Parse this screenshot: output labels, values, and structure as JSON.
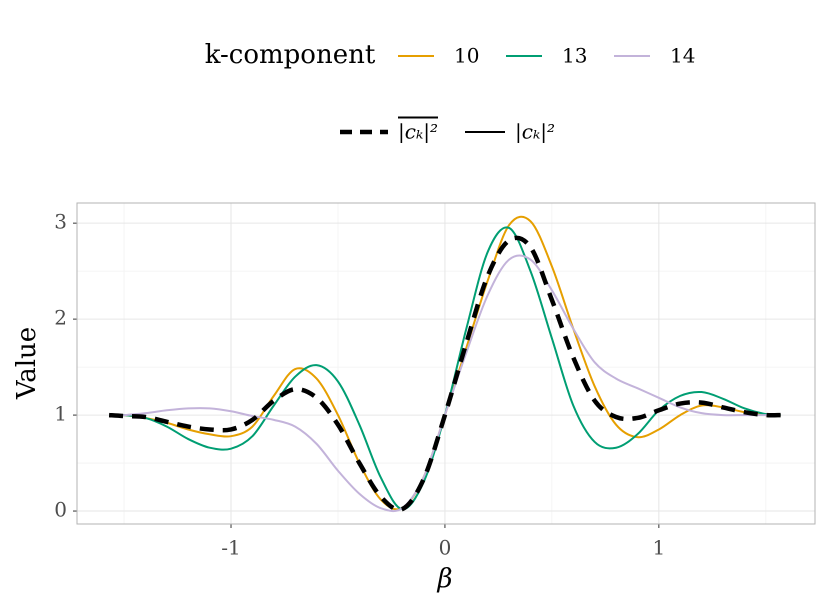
{
  "chart_data": {
    "type": "line",
    "x_label": "β",
    "y_label": "Value",
    "legend_title": "k-component",
    "solid_label": "|cₖ|²",
    "xlim": [
      -1.72,
      1.73
    ],
    "ylim": [
      -0.135,
      3.21
    ],
    "xticks": [
      -1,
      0,
      1
    ],
    "yticks": [
      0,
      1,
      2,
      3
    ],
    "grid": true,
    "x": [
      -1.57,
      -1.5,
      -1.4,
      -1.3,
      -1.2,
      -1.1,
      -1.0,
      -0.9,
      -0.8,
      -0.7,
      -0.6,
      -0.5,
      -0.4,
      -0.3,
      -0.2,
      -0.1,
      0,
      0.1,
      0.2,
      0.3,
      0.4,
      0.5,
      0.6,
      0.7,
      0.8,
      0.9,
      1.0,
      1.1,
      1.2,
      1.3,
      1.4,
      1.5,
      1.57
    ],
    "series": [
      {
        "name": "10",
        "color": "#E69F00",
        "values": [
          1,
          1,
          0.97,
          0.92,
          0.85,
          0.8,
          0.78,
          0.88,
          1.2,
          1.48,
          1.38,
          1.0,
          0.5,
          0.12,
          0.03,
          0.35,
          1.0,
          1.7,
          2.4,
          2.98,
          3.02,
          2.55,
          1.9,
          1.3,
          0.9,
          0.77,
          0.85,
          1.0,
          1.1,
          1.08,
          1.03,
          1.0,
          1.0
        ]
      },
      {
        "name": "13",
        "color": "#009E73",
        "values": [
          1,
          1,
          0.97,
          0.88,
          0.75,
          0.66,
          0.65,
          0.78,
          1.1,
          1.4,
          1.52,
          1.35,
          0.9,
          0.35,
          0.02,
          0.3,
          1.0,
          1.9,
          2.7,
          2.95,
          2.5,
          1.8,
          1.1,
          0.72,
          0.66,
          0.8,
          1.05,
          1.2,
          1.24,
          1.17,
          1.07,
          1.01,
          1.0
        ]
      },
      {
        "name": "14",
        "color": "#C3B3DA",
        "values": [
          1,
          1,
          1.02,
          1.05,
          1.07,
          1.07,
          1.04,
          0.99,
          0.95,
          0.88,
          0.7,
          0.42,
          0.18,
          0.03,
          0.03,
          0.35,
          1.0,
          1.65,
          2.25,
          2.62,
          2.62,
          2.3,
          1.9,
          1.55,
          1.38,
          1.28,
          1.18,
          1.08,
          1.02,
          1.0,
          1.0,
          1.0,
          1.0
        ]
      },
      {
        "name": "|cₖ|²",
        "color": "#000000",
        "dashed": true,
        "values": [
          1,
          0.99,
          0.98,
          0.93,
          0.88,
          0.85,
          0.85,
          0.95,
          1.15,
          1.27,
          1.18,
          0.9,
          0.5,
          0.15,
          0.02,
          0.33,
          1.0,
          1.75,
          2.45,
          2.82,
          2.75,
          2.2,
          1.6,
          1.15,
          0.98,
          0.97,
          1.05,
          1.12,
          1.13,
          1.08,
          1.03,
          1.0,
          1.0
        ]
      }
    ]
  }
}
